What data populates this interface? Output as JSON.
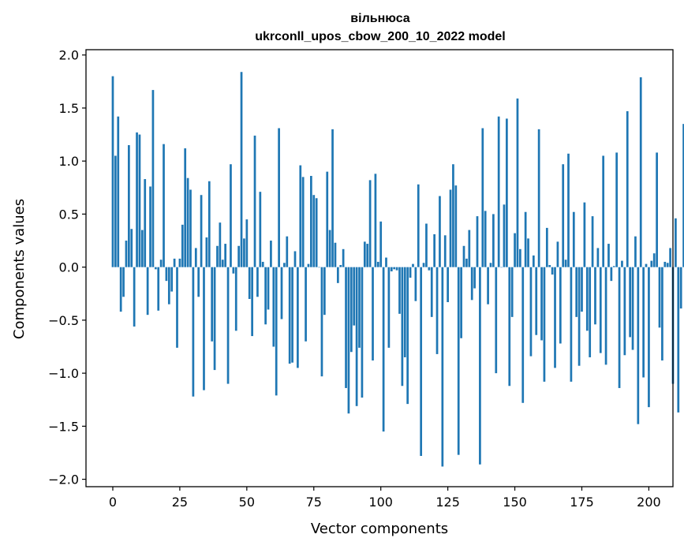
{
  "chart_data": {
    "type": "bar",
    "title": "вільнюса",
    "subtitle": "ukrconll_upos_cbow_200_10_2022 model",
    "xlabel": "Vector components",
    "ylabel": "Components values",
    "xlim": [
      -10,
      209
    ],
    "ylim": [
      -2.07,
      2.05
    ],
    "xticks": [
      0,
      25,
      50,
      75,
      100,
      125,
      150,
      175,
      200
    ],
    "xtick_labels": [
      "0",
      "25",
      "50",
      "75",
      "100",
      "125",
      "150",
      "175",
      "200"
    ],
    "yticks": [
      2.0,
      1.5,
      1.0,
      0.5,
      0.0,
      -0.5,
      -1.0,
      -1.5,
      -2.0
    ],
    "ytick_labels": [
      "2.0",
      "1.5",
      "1.0",
      "0.5",
      "0.0",
      "−0.5",
      "−1.0",
      "−1.5",
      "−2.0"
    ],
    "grid": false,
    "bar_color": "#1f77b4",
    "values": [
      1.8,
      1.05,
      1.42,
      -0.42,
      -0.28,
      0.25,
      1.15,
      0.36,
      -0.56,
      1.27,
      1.25,
      0.35,
      0.83,
      -0.45,
      0.76,
      1.67,
      -0.02,
      -0.41,
      0.07,
      1.16,
      -0.13,
      -0.35,
      -0.23,
      0.08,
      -0.76,
      0.08,
      0.4,
      1.12,
      0.84,
      0.73,
      -1.22,
      0.18,
      -0.28,
      0.68,
      -1.16,
      0.28,
      0.81,
      -0.7,
      -0.97,
      0.2,
      0.42,
      0.07,
      0.22,
      -1.1,
      0.97,
      -0.06,
      -0.6,
      0.2,
      1.84,
      0.27,
      0.45,
      -0.3,
      -0.65,
      1.24,
      -0.28,
      0.71,
      0.05,
      -0.54,
      -0.4,
      0.25,
      -0.75,
      -1.21,
      1.31,
      -0.49,
      0.04,
      0.29,
      -0.91,
      -0.9,
      0.15,
      -0.95,
      0.96,
      0.85,
      -0.7,
      0.03,
      0.86,
      0.68,
      0.65,
      0.0,
      -1.03,
      -0.45,
      0.9,
      0.35,
      1.3,
      0.23,
      -0.15,
      0.02,
      0.17,
      -1.14,
      -1.38,
      -0.8,
      -0.55,
      -1.31,
      -0.76,
      -1.23,
      0.24,
      0.22,
      0.82,
      -0.88,
      0.88,
      0.05,
      0.43,
      -1.55,
      0.09,
      -0.76,
      -0.04,
      -0.02,
      -0.03,
      -0.44,
      -1.12,
      -0.85,
      -1.29,
      -0.1,
      0.03,
      -0.32,
      0.78,
      -1.78,
      0.04,
      0.41,
      -0.03,
      -0.47,
      0.31,
      -0.82,
      0.67,
      -1.88,
      0.3,
      -0.33,
      0.73,
      0.97,
      0.77,
      -1.77,
      -0.67,
      0.2,
      0.08,
      0.35,
      -0.31,
      -0.2,
      0.48,
      -1.86,
      1.31,
      0.53,
      -0.35,
      0.04,
      0.5,
      -1.0,
      1.42,
      0.0,
      0.59,
      1.4,
      -1.12,
      -0.47,
      0.32,
      1.59,
      0.17,
      -1.28,
      0.52,
      0.27,
      -0.84,
      0.11,
      -0.64,
      1.3,
      -0.69,
      -1.08,
      0.37,
      0.02,
      -0.07,
      -0.95,
      0.24,
      -0.72,
      0.97,
      0.07,
      1.07,
      -1.08,
      0.52,
      -0.47,
      -0.93,
      -0.42,
      0.61,
      -0.6,
      -0.85,
      0.48,
      -0.54,
      0.18,
      -0.81,
      1.05,
      -0.92,
      0.22,
      -0.13,
      0.01,
      1.08,
      -1.14,
      0.06,
      -0.83,
      1.47,
      -0.66,
      -0.78,
      0.29,
      -1.48,
      1.79,
      -1.04,
      0.03,
      -1.32,
      0.06,
      0.13,
      1.08,
      -0.57,
      -0.88,
      0.05,
      0.04,
      0.18,
      -1.1,
      0.46,
      -1.37,
      -0.39,
      1.35
    ]
  }
}
